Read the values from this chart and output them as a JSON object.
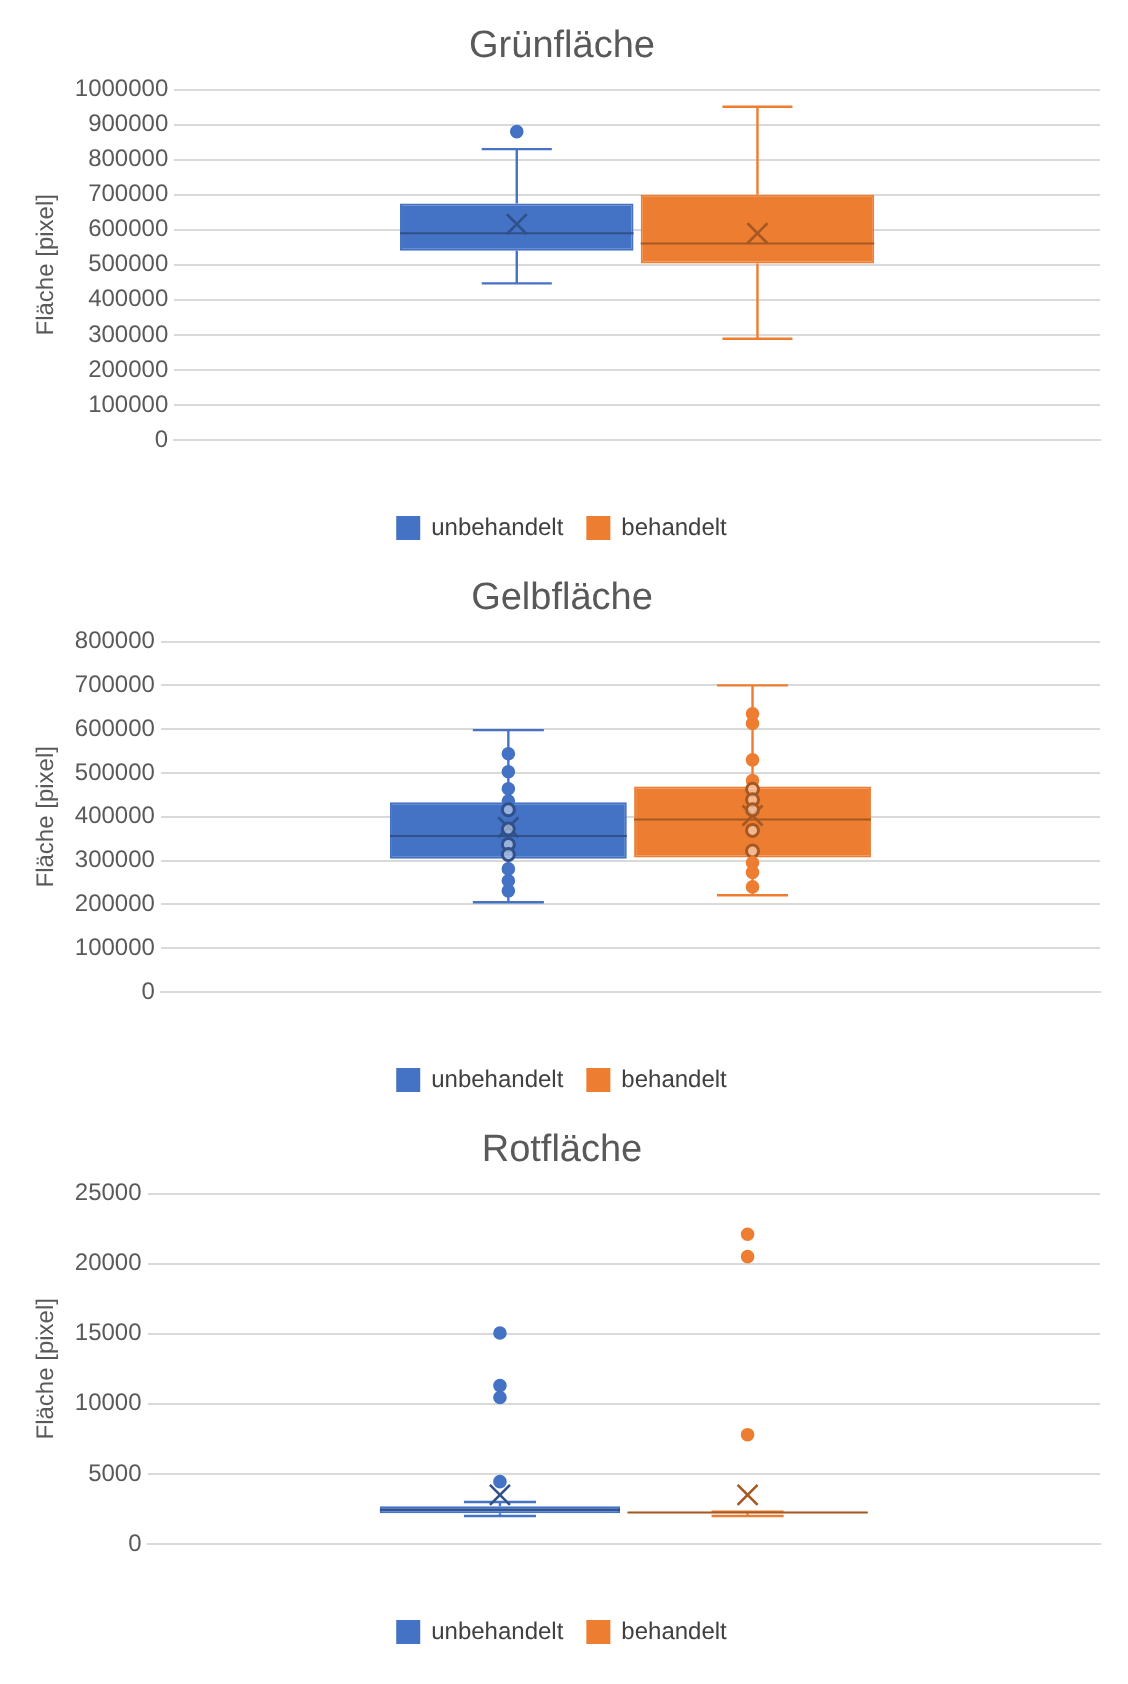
{
  "chart_data": [
    {
      "type": "box",
      "title": "Grünfläche",
      "ylabel": "Fläche [pixel]",
      "categories": [
        null
      ],
      "ylim": [
        0,
        1000000
      ],
      "yticks": [
        0,
        100000,
        200000,
        300000,
        400000,
        500000,
        600000,
        700000,
        800000,
        900000,
        1000000
      ],
      "grid": "y",
      "legend": "bottom",
      "series": [
        {
          "name": "unbehandelt",
          "color": "#4472c4",
          "boxes": [
            {
              "low": 447000,
              "q1": 540000,
              "median": 590000,
              "q3": 675000,
              "high": 830000,
              "mean": 616000,
              "outliers": [
                880000
              ]
            }
          ]
        },
        {
          "name": "behandelt",
          "color": "#ed7d31",
          "boxes": [
            {
              "low": 289000,
              "q1": 504000,
              "median": 561000,
              "q3": 700000,
              "high": 951000,
              "mean": 590000
            }
          ]
        }
      ]
    },
    {
      "type": "box",
      "title": "Gelbfläche",
      "ylabel": "Fläche [pixel]",
      "categories": [
        null
      ],
      "ylim": [
        0,
        800000
      ],
      "yticks": [
        0,
        100000,
        200000,
        300000,
        400000,
        500000,
        600000,
        700000,
        800000
      ],
      "grid": "y",
      "legend": "bottom",
      "series": [
        {
          "name": "unbehandelt",
          "color": "#4472c4",
          "boxes": [
            {
              "low": 205000,
              "q1": 304000,
              "median": 356000,
              "q3": 433000,
              "high": 598000,
              "mean": 376000,
              "outliers": [
                544000,
                503000,
                464000,
                436000,
                416000,
                372000,
                337000,
                314000,
                281000,
                254000,
                231000
              ]
            }
          ]
        },
        {
          "name": "behandelt",
          "color": "#ed7d31",
          "boxes": [
            {
              "low": 221000,
              "q1": 307000,
              "median": 394000,
              "q3": 469000,
              "high": 700000,
              "mean": 403000,
              "outliers": [
                635000,
                613000,
                530000,
                483000,
                463000,
                439000,
                416000,
                369000,
                322000,
                295000,
                273000,
                240000
              ]
            }
          ]
        }
      ]
    },
    {
      "type": "box",
      "title": "Rotfläche",
      "ylabel": "Fläche [pixel]",
      "categories": [
        null
      ],
      "ylim": [
        0,
        25000
      ],
      "yticks": [
        0,
        5000,
        10000,
        15000,
        20000,
        25000
      ],
      "grid": "y",
      "legend": "bottom",
      "series": [
        {
          "name": "unbehandelt",
          "color": "#4472c4",
          "boxes": [
            {
              "low": 2000,
              "q1": 2200,
              "median": 2450,
              "q3": 2700,
              "high": 3000,
              "mean": 3500,
              "outliers": [
                15050,
                11300,
                10450,
                4450
              ]
            }
          ]
        },
        {
          "name": "behandelt",
          "color": "#ed7d31",
          "boxes": [
            {
              "low": 2000,
              "q1": 2200,
              "median": 2250,
              "q3": 2300,
              "high": 2300,
              "mean": 3500,
              "outliers": [
                22100,
                20500,
                7800
              ]
            }
          ]
        }
      ]
    }
  ]
}
